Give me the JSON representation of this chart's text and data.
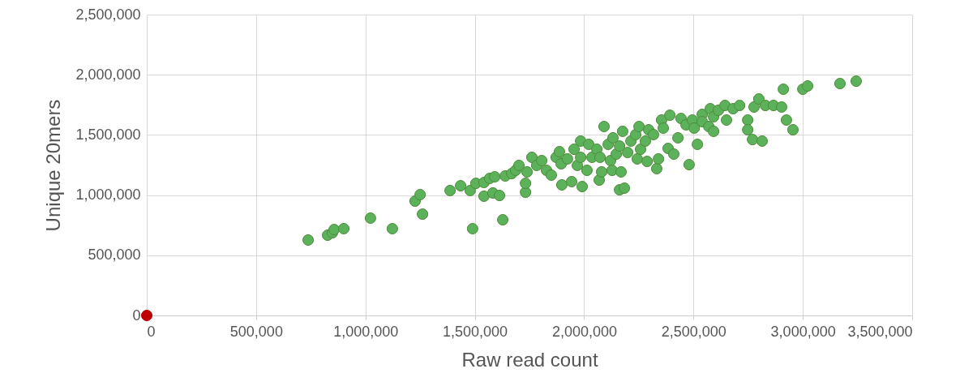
{
  "chart_data": {
    "type": "scatter",
    "xlabel": "Raw read count",
    "ylabel": "Unique 20mers",
    "grid": true,
    "marker": "circle",
    "xlim": [
      0,
      3500000
    ],
    "ylim": [
      0,
      2500000
    ],
    "xticks": [
      {
        "value": 0,
        "label": "0"
      },
      {
        "value": 500000,
        "label": "500,000"
      },
      {
        "value": 1000000,
        "label": "1,000,000"
      },
      {
        "value": 1500000,
        "label": "1,500,000"
      },
      {
        "value": 2000000,
        "label": "2,000,000"
      },
      {
        "value": 2500000,
        "label": "2,500,000"
      },
      {
        "value": 3000000,
        "label": "3,000,000"
      },
      {
        "value": 3500000,
        "label": "3,500,000"
      }
    ],
    "yticks": [
      {
        "value": 0,
        "label": "0"
      },
      {
        "value": 500000,
        "label": "500,000"
      },
      {
        "value": 1000000,
        "label": "1,000,000"
      },
      {
        "value": 1500000,
        "label": "1,500,000"
      },
      {
        "value": 2000000,
        "label": "2,000,000"
      },
      {
        "value": 2500000,
        "label": "2,500,000"
      }
    ],
    "series": [
      {
        "color": "#5cb25a",
        "x": [
          738000,
          827000,
          849000,
          857000,
          901000,
          1023000,
          1123000,
          1227000,
          1250000,
          1261000,
          1387000,
          1435000,
          1490000,
          1479000,
          1505000,
          1542000,
          1542000,
          1568000,
          1583000,
          1591000,
          1613000,
          1628000,
          1639000,
          1669000,
          1687000,
          1702000,
          1732000,
          1732000,
          1739000,
          1761000,
          1783000,
          1806000,
          1828000,
          1850000,
          1872000,
          1887000,
          1895000,
          1898000,
          1924000,
          1943000,
          1954000,
          1969000,
          1984000,
          1984000,
          1991000,
          2013000,
          2021000,
          2036000,
          2058000,
          2073000,
          2069000,
          2091000,
          2080000,
          2110000,
          2121000,
          2132000,
          2128000,
          2147000,
          2162000,
          2162000,
          2169000,
          2176000,
          2184000,
          2199000,
          2214000,
          2236000,
          2243000,
          2251000,
          2258000,
          2280000,
          2288000,
          2295000,
          2317000,
          2332000,
          2340000,
          2354000,
          2362000,
          2384000,
          2392000,
          2410000,
          2429000,
          2443000,
          2466000,
          2480000,
          2495000,
          2503000,
          2518000,
          2540000,
          2540000,
          2570000,
          2577000,
          2592000,
          2592000,
          2614000,
          2644000,
          2651000,
          2681000,
          2711000,
          2748000,
          2748000,
          2770000,
          2777000,
          2799000,
          2814000,
          2829000,
          2866000,
          2903000,
          2911000,
          2925000,
          2955000,
          3000000,
          3022000,
          3170000,
          3244000
        ],
        "values": [
          627000,
          667000,
          687000,
          714000,
          721000,
          809000,
          721000,
          950000,
          1004000,
          842000,
          1038000,
          1078000,
          721000,
          1038000,
          1098000,
          1105000,
          991000,
          1139000,
          1018000,
          1152000,
          997000,
          795000,
          1159000,
          1179000,
          1206000,
          1247000,
          1024000,
          1098000,
          1193000,
          1314000,
          1247000,
          1287000,
          1206000,
          1166000,
          1314000,
          1361000,
          1260000,
          1085000,
          1301000,
          1112000,
          1381000,
          1247000,
          1314000,
          1449000,
          1071000,
          1206000,
          1422000,
          1314000,
          1381000,
          1314000,
          1125000,
          1570000,
          1193000,
          1422000,
          1287000,
          1476000,
          1206000,
          1341000,
          1408000,
          1044000,
          1193000,
          1530000,
          1058000,
          1354000,
          1449000,
          1503000,
          1301000,
          1570000,
          1381000,
          1449000,
          1280000,
          1543000,
          1503000,
          1220000,
          1301000,
          1624000,
          1557000,
          1388000,
          1664000,
          1341000,
          1476000,
          1637000,
          1584000,
          1253000,
          1624000,
          1557000,
          1422000,
          1671000,
          1610000,
          1570000,
          1718000,
          1651000,
          1530000,
          1705000,
          1745000,
          1624000,
          1718000,
          1745000,
          1624000,
          1543000,
          1462000,
          1732000,
          1799000,
          1449000,
          1745000,
          1745000,
          1732000,
          1880000,
          1624000,
          1543000,
          1880000,
          1907000,
          1927000,
          1947000
        ]
      },
      {
        "color": "#c00000",
        "x": [
          0
        ],
        "values": [
          0
        ]
      }
    ]
  }
}
